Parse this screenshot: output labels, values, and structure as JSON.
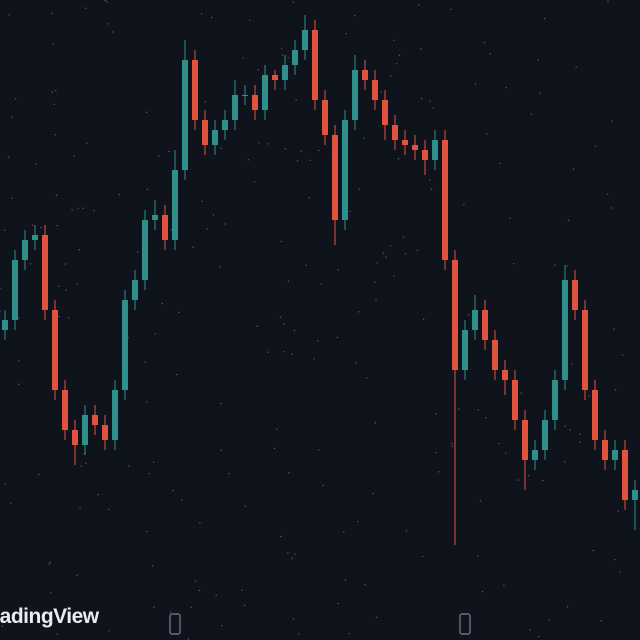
{
  "chart_data": {
    "type": "candlestick",
    "watermark": "radingView",
    "ylim": [
      0,
      640
    ],
    "up_color": "#2f8f8a",
    "down_color": "#e0533f",
    "open": [
      310,
      320,
      380,
      400,
      405,
      330,
      250,
      210,
      195,
      225,
      215,
      200,
      250,
      340,
      360,
      420,
      425,
      400,
      470,
      580,
      520,
      495,
      510,
      520,
      545,
      545,
      530,
      565,
      560,
      575,
      590,
      610,
      540,
      505,
      420,
      520,
      570,
      560,
      540,
      515,
      500,
      495,
      490,
      480,
      500,
      380,
      270,
      310,
      330,
      300,
      270,
      260,
      220,
      180,
      190,
      220,
      260,
      360,
      330,
      250,
      200,
      180,
      190,
      140
    ],
    "high": [
      330,
      390,
      410,
      415,
      415,
      340,
      260,
      220,
      235,
      235,
      225,
      260,
      350,
      370,
      430,
      440,
      435,
      490,
      600,
      590,
      530,
      520,
      530,
      560,
      555,
      555,
      575,
      570,
      585,
      600,
      625,
      620,
      550,
      515,
      530,
      585,
      580,
      570,
      550,
      525,
      510,
      505,
      500,
      510,
      510,
      390,
      320,
      345,
      340,
      310,
      280,
      270,
      230,
      200,
      230,
      270,
      375,
      370,
      340,
      260,
      210,
      200,
      200,
      160
    ],
    "low": [
      300,
      310,
      370,
      390,
      320,
      240,
      200,
      175,
      185,
      205,
      190,
      190,
      240,
      330,
      350,
      410,
      390,
      390,
      460,
      510,
      485,
      485,
      500,
      510,
      535,
      520,
      520,
      550,
      550,
      565,
      580,
      530,
      495,
      395,
      410,
      510,
      550,
      530,
      500,
      490,
      485,
      480,
      465,
      470,
      370,
      95,
      260,
      300,
      290,
      260,
      245,
      210,
      150,
      170,
      180,
      210,
      250,
      320,
      240,
      190,
      170,
      170,
      130,
      110
    ],
    "close": [
      320,
      380,
      400,
      405,
      330,
      250,
      210,
      195,
      225,
      215,
      200,
      250,
      340,
      360,
      420,
      425,
      400,
      470,
      580,
      520,
      495,
      510,
      520,
      545,
      545,
      530,
      565,
      560,
      575,
      590,
      610,
      540,
      505,
      420,
      520,
      570,
      560,
      540,
      515,
      500,
      495,
      490,
      480,
      500,
      380,
      270,
      310,
      330,
      300,
      270,
      260,
      220,
      180,
      190,
      220,
      260,
      360,
      330,
      250,
      200,
      180,
      190,
      140,
      150
    ]
  }
}
